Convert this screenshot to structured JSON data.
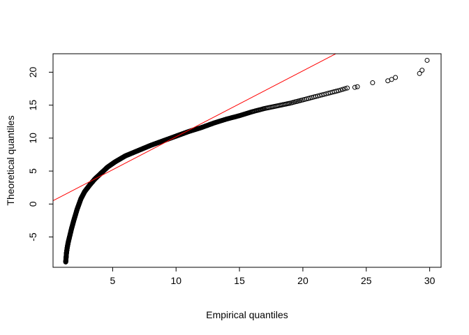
{
  "chart_data": {
    "type": "scatter",
    "title": "",
    "xlabel": "Empirical quantiles",
    "ylabel": "Theoretical quantiles",
    "xlim": [
      0.3,
      30.9
    ],
    "ylim": [
      -9.6,
      22.8
    ],
    "x_ticks": [
      5,
      10,
      15,
      20,
      25,
      30
    ],
    "y_ticks": [
      -5,
      0,
      5,
      10,
      15,
      20
    ],
    "grid": false,
    "point_style": "open-circle",
    "point_color": "#000000",
    "line_color": "#ff0000",
    "reference_line": {
      "intercept": 0.2,
      "slope": 1.0
    },
    "anchors": [
      [
        1.3,
        -8.8
      ],
      [
        1.36,
        -7.4
      ],
      [
        1.42,
        -6.6
      ],
      [
        1.5,
        -5.8
      ],
      [
        1.6,
        -5.0
      ],
      [
        1.75,
        -3.8
      ],
      [
        1.95,
        -2.4
      ],
      [
        2.2,
        -0.8
      ],
      [
        2.5,
        0.8
      ],
      [
        2.8,
        1.9
      ],
      [
        3.2,
        2.9
      ],
      [
        3.6,
        3.8
      ],
      [
        4.1,
        4.7
      ],
      [
        4.6,
        5.6
      ],
      [
        5.2,
        6.4
      ],
      [
        6.0,
        7.3
      ],
      [
        7.0,
        8.1
      ],
      [
        8.0,
        8.9
      ],
      [
        9.0,
        9.6
      ],
      [
        10.0,
        10.3
      ],
      [
        11.0,
        11.0
      ],
      [
        12.0,
        11.6
      ],
      [
        13.0,
        12.3
      ],
      [
        14.0,
        12.9
      ],
      [
        15.0,
        13.4
      ],
      [
        16.0,
        14.0
      ],
      [
        17.0,
        14.5
      ],
      [
        18.0,
        14.9
      ],
      [
        19.0,
        15.3
      ],
      [
        20.0,
        15.8
      ],
      [
        21.0,
        16.3
      ],
      [
        22.0,
        16.8
      ],
      [
        22.8,
        17.2
      ],
      [
        23.5,
        17.6
      ]
    ],
    "point_counts": [
      40,
      30,
      30,
      30,
      40,
      50,
      60,
      60,
      60,
      60,
      60,
      60,
      60,
      60,
      60,
      55,
      50,
      45,
      40,
      35,
      30,
      25,
      20,
      18,
      15,
      12,
      10,
      9,
      8,
      7,
      6,
      5,
      4
    ],
    "tail_points": [
      [
        24.1,
        17.7
      ],
      [
        24.3,
        17.8
      ],
      [
        25.5,
        18.4
      ],
      [
        26.7,
        18.7
      ],
      [
        27.0,
        18.9
      ],
      [
        27.3,
        19.2
      ],
      [
        29.2,
        19.8
      ],
      [
        29.4,
        20.3
      ],
      [
        29.8,
        21.8
      ]
    ]
  }
}
